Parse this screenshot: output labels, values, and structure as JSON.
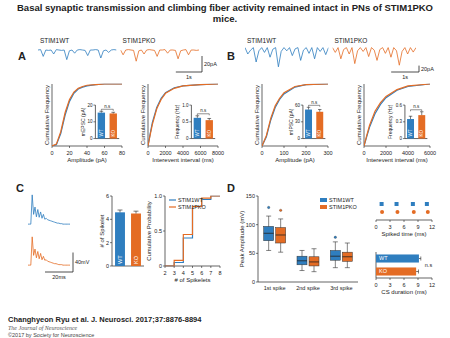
{
  "figure": {
    "title": "Basal synaptic transmission and climbing fiber activity remained intact in PNs of STIM1PKO mice.",
    "citation": "Changhyeon Ryu et al. J. Neurosci. 2017;37:8876-8894",
    "journal": "The Journal of Neuroscience",
    "copyright": "©2017 by Society for Neuroscience"
  },
  "chart_data": [
    {
      "type": "trace",
      "panel": "A",
      "x": [
        0,
        0.1,
        0.2,
        0.3,
        0.4,
        0.5,
        0.6,
        0.7,
        0.8,
        0.9,
        1,
        1.1,
        1.2,
        1.3,
        1.4,
        1.5,
        1.6,
        1.7,
        1.8,
        1.9,
        2,
        2.1,
        2.2,
        2.3,
        2.4,
        2.5,
        2.6,
        2.7,
        2.8,
        2.9,
        3
      ],
      "xlim": [
        0,
        3
      ],
      "ylim": [
        -25,
        5
      ],
      "scalebar": {
        "x": 1,
        "x_label": "1s",
        "y": 20,
        "y_label": "20pA"
      },
      "series": [
        {
          "name": "STIM1WT",
          "color": "#2f7ebf",
          "values": [
            0,
            0.5,
            -8,
            0,
            -0.5,
            0,
            -5,
            0.5,
            0,
            -0.5,
            0,
            -12,
            -1,
            0,
            -4,
            0,
            0.5,
            0,
            -0.5,
            -7,
            0,
            0,
            0.5,
            0,
            -10,
            -1,
            0,
            -3,
            0,
            0.5,
            0
          ]
        },
        {
          "name": "STIM1PKO",
          "color": "#e46c24",
          "values": [
            0,
            -6,
            0,
            0.5,
            0,
            -0.5,
            -14,
            -1,
            0,
            -5,
            0,
            0.5,
            0,
            -0.5,
            -8,
            0,
            0,
            0.5,
            -4,
            0,
            0,
            -0.5,
            -11,
            -1,
            0,
            0.5,
            -6,
            0,
            0,
            -0.5,
            0
          ]
        }
      ]
    },
    {
      "type": "line",
      "x": [
        0,
        5,
        10,
        15,
        20,
        25,
        30,
        35,
        40,
        50,
        60,
        80
      ],
      "xlim": [
        0,
        80
      ],
      "ylim": [
        0,
        1
      ],
      "xticks": [
        0,
        20,
        40,
        60,
        80
      ],
      "tick_labels": "x",
      "xlabel": "Amplitude (pA)",
      "ylabel": "Cumulative Frequency",
      "series": [
        {
          "name": "STIM1WT",
          "color": "#2f7ebf",
          "values": [
            0,
            0.02,
            0.2,
            0.5,
            0.72,
            0.85,
            0.92,
            0.95,
            0.97,
            0.99,
            1,
            1
          ]
        },
        {
          "name": "STIM1PKO",
          "color": "#e46c24",
          "values": [
            0,
            0.03,
            0.23,
            0.54,
            0.75,
            0.87,
            0.93,
            0.96,
            0.98,
            0.99,
            1,
            1
          ]
        }
      ],
      "inset": {
        "type": "bar",
        "categories": [
          "WT",
          "KO"
        ],
        "values": [
          15.5,
          15
        ],
        "errors": [
          0.8,
          0.7
        ],
        "colors": [
          "#2f7ebf",
          "#e46c24"
        ],
        "ylim": [
          0,
          20
        ],
        "yticks": [
          0,
          10,
          20
        ],
        "ylabel": "mEPSC (pA)",
        "annotation": "n.s"
      }
    },
    {
      "type": "line",
      "x": [
        0,
        250,
        500,
        1000,
        1500,
        2000,
        3000,
        4000,
        6000,
        8000
      ],
      "xlim": [
        0,
        8000
      ],
      "ylim": [
        0,
        1
      ],
      "xticks": [
        0,
        2000,
        4000,
        6000,
        8000
      ],
      "tick_labels": "x",
      "xlabel": "Interevent interval (ms)",
      "ylabel": "Cumulative Frequency",
      "series": [
        {
          "name": "STIM1WT",
          "color": "#2f7ebf",
          "values": [
            0,
            0.2,
            0.38,
            0.62,
            0.77,
            0.86,
            0.94,
            0.97,
            0.99,
            1
          ]
        },
        {
          "name": "STIM1PKO",
          "color": "#e46c24",
          "values": [
            0,
            0.18,
            0.35,
            0.6,
            0.75,
            0.85,
            0.93,
            0.97,
            0.99,
            1
          ]
        }
      ],
      "inset": {
        "type": "bar",
        "categories": [
          "WT",
          "KO"
        ],
        "values": [
          0.62,
          0.55
        ],
        "errors": [
          0.06,
          0.05
        ],
        "colors": [
          "#2f7ebf",
          "#e46c24"
        ],
        "ylim": [
          0,
          1
        ],
        "yticks": [
          0,
          0.5,
          {
            "value": 1,
            "label": "1.0"
          }
        ],
        "ylabel": "Frequency (Hz)",
        "annotation": "n.s"
      }
    },
    {
      "type": "trace",
      "panel": "B",
      "x": [
        0,
        0.1,
        0.2,
        0.3,
        0.4,
        0.5,
        0.6,
        0.7,
        0.8,
        0.9,
        1,
        1.1,
        1.2,
        1.3,
        1.4,
        1.5,
        1.6,
        1.7,
        1.8,
        1.9,
        2,
        2.1,
        2.2,
        2.3,
        2.4,
        2.5,
        2.6,
        2.7,
        2.8,
        2.9,
        3
      ],
      "xlim": [
        0,
        3
      ],
      "ylim": [
        -70,
        5
      ],
      "scalebar": {
        "x": 1,
        "x_label": "1s",
        "y": 20,
        "y_label": "20pA"
      },
      "series": [
        {
          "name": "STIM1WT",
          "color": "#2f7ebf",
          "values": [
            0,
            -20,
            -8,
            0,
            -45,
            -10,
            0,
            -15,
            0,
            -30,
            -5,
            0,
            -60,
            -12,
            0,
            -10,
            0,
            -25,
            -4,
            0,
            -40,
            -8,
            0,
            -18,
            0,
            -35,
            0,
            -12,
            0,
            -22,
            0
          ]
        },
        {
          "name": "STIM1PKO",
          "color": "#e46c24",
          "values": [
            0,
            -15,
            0,
            -35,
            -6,
            0,
            -20,
            0,
            -50,
            -10,
            0,
            -12,
            0,
            -28,
            0,
            -8,
            -40,
            -6,
            0,
            -18,
            0,
            -30,
            0,
            -10,
            -55,
            -12,
            0,
            -20,
            0,
            -14,
            0
          ]
        }
      ]
    },
    {
      "type": "line",
      "x": [
        0,
        20,
        40,
        60,
        80,
        100,
        150,
        200,
        300
      ],
      "xlim": [
        0,
        300
      ],
      "ylim": [
        0,
        1
      ],
      "xticks": [
        0,
        100,
        200,
        300
      ],
      "tick_labels": "x",
      "xlabel": "Amplitude (pA)",
      "ylabel": "Cumulative Frequency",
      "series": [
        {
          "name": "STIM1WT",
          "color": "#2f7ebf",
          "values": [
            0,
            0.15,
            0.42,
            0.62,
            0.75,
            0.84,
            0.95,
            0.99,
            1
          ]
        },
        {
          "name": "STIM1PKO",
          "color": "#e46c24",
          "values": [
            0,
            0.17,
            0.45,
            0.65,
            0.77,
            0.86,
            0.96,
            0.99,
            1
          ]
        }
      ],
      "inset": {
        "type": "bar",
        "categories": [
          "WT",
          "KO"
        ],
        "values": [
          52,
          48
        ],
        "errors": [
          4,
          4
        ],
        "colors": [
          "#2f7ebf",
          "#e46c24"
        ],
        "ylim": [
          0,
          60
        ],
        "yticks": [
          0,
          30,
          60
        ],
        "ylabel": "mIPSC (pA)",
        "annotation": "n.s"
      }
    },
    {
      "type": "line",
      "x": [
        0,
        250,
        500,
        1000,
        1500,
        2000,
        3000,
        4000,
        6000
      ],
      "xlim": [
        0,
        6000
      ],
      "ylim": [
        0,
        1
      ],
      "xticks": [
        0,
        2000,
        4000,
        6000
      ],
      "tick_labels": "x",
      "xlabel": "Interevent interval (ms)",
      "ylabel": "Cumulative Frequency",
      "series": [
        {
          "name": "STIM1WT",
          "color": "#2f7ebf",
          "values": [
            0,
            0.15,
            0.3,
            0.52,
            0.67,
            0.78,
            0.9,
            0.96,
            1
          ]
        },
        {
          "name": "STIM1PKO",
          "color": "#e46c24",
          "values": [
            0,
            0.17,
            0.33,
            0.56,
            0.7,
            0.8,
            0.91,
            0.97,
            1
          ]
        }
      ],
      "inset": {
        "type": "bar",
        "categories": [
          "WT",
          "KO"
        ],
        "values": [
          0.35,
          0.42
        ],
        "errors": [
          0.05,
          0.06
        ],
        "colors": [
          "#2f7ebf",
          "#e46c24"
        ],
        "ylim": [
          0,
          0.6
        ],
        "yticks": [
          0,
          0.3,
          0.6
        ],
        "ylabel": "Frequency (Hz)",
        "annotation": "n.s"
      }
    },
    {
      "type": "trace",
      "panel": "C",
      "x": [
        0,
        1,
        2,
        3,
        4,
        5,
        6,
        7,
        8,
        9,
        10,
        11,
        12,
        13,
        14,
        15,
        16,
        17,
        18,
        19,
        20,
        21,
        22,
        23,
        24,
        25,
        26,
        27,
        28,
        29,
        30
      ],
      "xlim": [
        0,
        30
      ],
      "ylim": [
        -10,
        70
      ],
      "scalebar": {
        "x": 20,
        "x_label": "20ms",
        "y": 40,
        "y_label": "40mV"
      },
      "series": [
        {
          "color": "#2f7ebf",
          "values": [
            0,
            0,
            0,
            60,
            20,
            35,
            15,
            30,
            14,
            25,
            12,
            20,
            10,
            12,
            9,
            8,
            7,
            6,
            5,
            4,
            3,
            2,
            2,
            1,
            1,
            0,
            0,
            0,
            0,
            0,
            0
          ]
        },
        {
          "color": "#e46c24",
          "values": [
            0,
            0,
            0,
            58,
            20,
            33,
            15,
            28,
            13,
            24,
            11,
            18,
            10,
            11,
            8,
            7,
            6,
            5,
            4,
            3,
            3,
            2,
            1,
            1,
            1,
            0,
            0,
            0,
            0,
            0,
            0
          ]
        }
      ]
    },
    {
      "type": "bar",
      "categories": [
        "WT",
        "KO"
      ],
      "values": [
        4.6,
        4.5
      ],
      "errors": [
        0.2,
        0.2
      ],
      "colors": [
        "#2f7ebf",
        "#e46c24"
      ],
      "ylim": [
        0,
        6
      ],
      "yticks": [
        0,
        2,
        4,
        6
      ],
      "ylabel": "# of Spikelet"
    },
    {
      "type": "line",
      "line_style": "step",
      "x": [
        2,
        3,
        4,
        5,
        6,
        7,
        8
      ],
      "xlim": [
        2,
        8
      ],
      "ylim": [
        0,
        1
      ],
      "xticks": [
        2,
        3,
        4,
        5,
        6,
        7,
        8
      ],
      "yticks": [
        0,
        0.5,
        {
          "value": 1,
          "label": "1.0"
        }
      ],
      "xlabel": "# of Spikelets",
      "ylabel": "Cumulative Probability",
      "legend": "upper left",
      "series": [
        {
          "name": "STIM1WT",
          "color": "#2f7ebf",
          "values": [
            0,
            0.05,
            0.4,
            0.85,
            0.95,
            1,
            1
          ]
        },
        {
          "name": "STIM1PKO",
          "color": "#e46c24",
          "values": [
            0,
            0.08,
            0.45,
            0.85,
            0.97,
            1,
            1
          ]
        }
      ]
    },
    {
      "type": "box",
      "panel": "D",
      "categories": [
        "1st spike",
        "2nd spike",
        "3rd spike"
      ],
      "ylim": [
        0,
        150
      ],
      "yticks": [
        0,
        50,
        100,
        150
      ],
      "ylabel": "Peak Amplitude (mV)",
      "legend": "upper right",
      "series": [
        {
          "name": "STIM1WT",
          "color": "#2f7ebf",
          "min": [
            55,
            20,
            25
          ],
          "q1": [
            72,
            30,
            38
          ],
          "median": [
            85,
            37,
            45
          ],
          "q3": [
            97,
            45,
            55
          ],
          "max": [
            115,
            55,
            70
          ],
          "outliers": [
            [
              130
            ],
            [],
            [
              78
            ]
          ]
        },
        {
          "name": "STIM1PKO",
          "color": "#e46c24",
          "min": [
            52,
            18,
            25
          ],
          "q1": [
            68,
            28,
            36
          ],
          "median": [
            82,
            35,
            44
          ],
          "q3": [
            95,
            44,
            52
          ],
          "max": [
            110,
            58,
            68
          ],
          "outliers": [
            [
              125
            ],
            [],
            []
          ]
        }
      ]
    },
    {
      "type": "dot",
      "xlim": [
        0,
        12
      ],
      "xticks": [
        0,
        3,
        6,
        9,
        12
      ],
      "xlabel": "Spiked time (ms)",
      "series": [
        {
          "color": "#2f7ebf",
          "marker": "square",
          "values": [
            1.2,
            4.4,
            7.9,
            10.9
          ]
        },
        {
          "color": "#e46c24",
          "marker": "circle",
          "values": [
            1.3,
            4.6,
            8.1,
            11.1
          ]
        }
      ]
    },
    {
      "type": "bar",
      "orientation": "horizontal",
      "categories": [
        "WT",
        "KO"
      ],
      "values": [
        9.2,
        8.6
      ],
      "errors": [
        0.4,
        0.5
      ],
      "colors": [
        "#2f7ebf",
        "#e46c24"
      ],
      "xlim": [
        0,
        12
      ],
      "xticks": [
        0,
        3,
        6,
        9,
        12
      ],
      "xlabel": "CS duration (ms)",
      "annotation": "n.s"
    }
  ]
}
